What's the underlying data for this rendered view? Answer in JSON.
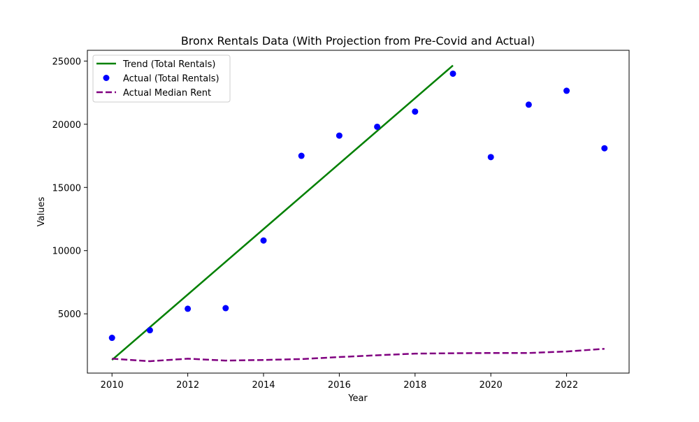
{
  "chart_data": {
    "type": "line",
    "title": "Bronx Rentals Data (With Projection from Pre-Covid and Actual)",
    "xlabel": "Year",
    "ylabel": "Values",
    "xlim": [
      2009.35,
      2023.65
    ],
    "ylim": [
      310,
      25850
    ],
    "x_ticks": [
      2010,
      2012,
      2014,
      2016,
      2018,
      2020,
      2022
    ],
    "y_ticks": [
      5000,
      10000,
      15000,
      20000,
      25000
    ],
    "grid": false,
    "legend_position": "top-left",
    "series": [
      {
        "name": "Trend (Total Rentals)",
        "type": "line",
        "style": "solid",
        "color": "#008000",
        "x": [
          2010,
          2019
        ],
        "y": [
          1350,
          24650
        ]
      },
      {
        "name": "Actual (Total Rentals)",
        "type": "scatter",
        "color": "#0000ff",
        "x": [
          2010,
          2011,
          2012,
          2013,
          2014,
          2015,
          2016,
          2017,
          2018,
          2019,
          2020,
          2021,
          2022,
          2023
        ],
        "y": [
          3100,
          3700,
          5400,
          5450,
          10800,
          17500,
          19100,
          19800,
          21000,
          24000,
          17400,
          21550,
          22650,
          18100
        ]
      },
      {
        "name": "Actual Median Rent",
        "type": "line",
        "style": "dashed",
        "color": "#800080",
        "x": [
          2010,
          2011,
          2012,
          2013,
          2014,
          2015,
          2016,
          2017,
          2018,
          2019,
          2020,
          2021,
          2022,
          2023
        ],
        "y": [
          1450,
          1250,
          1450,
          1300,
          1350,
          1420,
          1580,
          1720,
          1850,
          1880,
          1900,
          1900,
          2020,
          2230
        ]
      }
    ]
  }
}
